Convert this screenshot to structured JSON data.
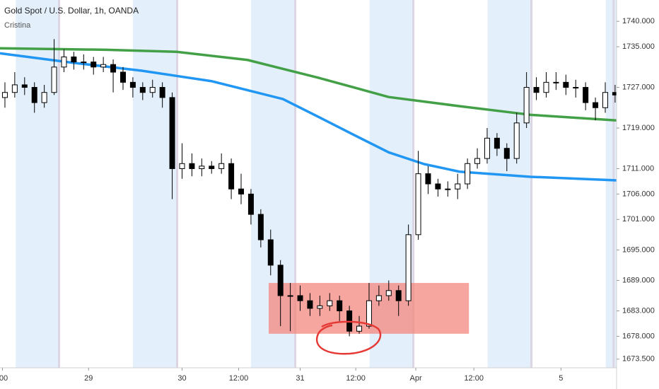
{
  "chart_data": {
    "type": "candlestick",
    "title": "Gold Spot / U.S. Dollar, 1h, OANDA",
    "subtitle": "Cristina",
    "xlim": [
      0,
      125.3
    ],
    "ylim": [
      1671.8,
      1744.2
    ],
    "yticks": [
      {
        "value": 1740,
        "label": "1740.000"
      },
      {
        "value": 1735,
        "label": "1735.000"
      },
      {
        "value": 1727,
        "label": "1727.000"
      },
      {
        "value": 1719,
        "label": "1719.000"
      },
      {
        "value": 1711,
        "label": "1711.000"
      },
      {
        "value": 1706,
        "label": "1706.000"
      },
      {
        "value": 1701,
        "label": "1701.000"
      },
      {
        "value": 1695,
        "label": "1695.000"
      },
      {
        "value": 1689,
        "label": "1689.000"
      },
      {
        "value": 1683,
        "label": "1683.000"
      },
      {
        "value": 1678,
        "label": "1678.000"
      },
      {
        "value": 1673.5,
        "label": "1673.500"
      }
    ],
    "xticks": [
      {
        "value": 0.5,
        "label": ":00"
      },
      {
        "value": 18,
        "label": "29"
      },
      {
        "value": 37,
        "label": "30"
      },
      {
        "value": 48.5,
        "label": "12:00"
      },
      {
        "value": 61,
        "label": "31"
      },
      {
        "value": 72.3,
        "label": "12:00"
      },
      {
        "value": 84.5,
        "label": "Apr"
      },
      {
        "value": 96.3,
        "label": "12:00"
      },
      {
        "value": 114,
        "label": "5"
      }
    ],
    "session_bands": [
      [
        3.2,
        11.8
      ],
      [
        27,
        36
      ],
      [
        51,
        60
      ],
      [
        75.1,
        84
      ],
      [
        99.1,
        108
      ],
      [
        123.1,
        125.3
      ]
    ],
    "day_lines": [
      12,
      36,
      60,
      84,
      108,
      124.7
    ],
    "up_color": "#ffffff",
    "down_color": "#000000",
    "candles": {
      "x": [
        1,
        3,
        5,
        7,
        9,
        11,
        13,
        15,
        17,
        19,
        21,
        23,
        25,
        27,
        29,
        31,
        33,
        35,
        37,
        39,
        41,
        43,
        45,
        47,
        49,
        51,
        53,
        55,
        57,
        59,
        61,
        63,
        65,
        67,
        69,
        71,
        73,
        75,
        77,
        79,
        81,
        83,
        85,
        87,
        89,
        91,
        93,
        95,
        97,
        99,
        101,
        103,
        105,
        107,
        109,
        111,
        113,
        115,
        117,
        119,
        121,
        123,
        125
      ],
      "open": [
        1725,
        1726,
        1727.5,
        1727,
        1724,
        1726,
        1731,
        1733,
        1732,
        1732,
        1731,
        1731.5,
        1730,
        1728,
        1727,
        1726,
        1727,
        1725,
        1711,
        1712,
        1711,
        1711.5,
        1711,
        1712,
        1707,
        1706,
        1702,
        1697,
        1692,
        1686,
        1686,
        1685,
        1683.5,
        1684,
        1685,
        1683,
        1679,
        1680,
        1685,
        1686,
        1687,
        1685,
        1698,
        1710,
        1708,
        1707,
        1707,
        1708,
        1712,
        1713,
        1717,
        1715,
        1713,
        1720,
        1727,
        1726,
        1728,
        1728,
        1727,
        1727,
        1724,
        1723,
        1726
      ],
      "high": [
        1728,
        1730,
        1729,
        1728,
        1727.5,
        1736.5,
        1734.5,
        1734,
        1733.5,
        1733,
        1733,
        1732.5,
        1731,
        1729,
        1728,
        1728.5,
        1728,
        1726,
        1716,
        1714,
        1713,
        1712.5,
        1714,
        1713,
        1710,
        1707,
        1703,
        1699,
        1693,
        1688.5,
        1688,
        1686.5,
        1686,
        1686.5,
        1686,
        1684,
        1682,
        1688.5,
        1688,
        1689,
        1688,
        1700,
        1714.5,
        1711.5,
        1709,
        1708.5,
        1710,
        1713,
        1715,
        1719,
        1718,
        1716,
        1722,
        1730,
        1729,
        1730,
        1730,
        1729.5,
        1728.5,
        1728,
        1725,
        1728,
        1727.5
      ],
      "low": [
        1723,
        1725,
        1725.5,
        1722,
        1723,
        1725.5,
        1730,
        1730.5,
        1730.5,
        1729.5,
        1730,
        1726,
        1726.5,
        1725,
        1724.5,
        1725,
        1723,
        1705,
        1709,
        1709.5,
        1709.5,
        1710,
        1710,
        1705,
        1704,
        1700,
        1695.5,
        1690,
        1680,
        1679,
        1683,
        1682,
        1682,
        1683,
        1681,
        1678,
        1678.5,
        1679.5,
        1684,
        1685,
        1682,
        1684,
        1697,
        1706,
        1705.5,
        1705.5,
        1705,
        1707,
        1711,
        1712,
        1713.5,
        1710.5,
        1712,
        1719,
        1724.5,
        1725,
        1726.5,
        1725.5,
        1725,
        1722.5,
        1720.5,
        1722,
        1724
      ],
      "close": [
        1726,
        1727.5,
        1727,
        1724,
        1726,
        1731,
        1733,
        1732,
        1732,
        1731,
        1731.5,
        1730,
        1728,
        1727,
        1726,
        1727,
        1725,
        1711,
        1712,
        1711,
        1711.5,
        1711,
        1712,
        1707,
        1706,
        1702,
        1697,
        1692,
        1686,
        1686,
        1685,
        1683.5,
        1684,
        1685,
        1683,
        1679,
        1680,
        1685,
        1686,
        1687,
        1685,
        1698,
        1710,
        1708,
        1707,
        1707,
        1708,
        1712,
        1713,
        1717,
        1715,
        1713,
        1720,
        1727,
        1726,
        1728,
        1728,
        1727,
        1727,
        1724,
        1723,
        1726,
        1725.5
      ]
    },
    "series": [
      {
        "color": "#43a047",
        "x": [
          0,
          21.6,
          35.9,
          50.3,
          64.7,
          79,
          93.4,
          107.8,
          125.3
        ],
        "values": [
          1734.7,
          1734.4,
          1734.0,
          1732.4,
          1728.9,
          1725.1,
          1723.3,
          1721.6,
          1720.5
        ]
      },
      {
        "color": "#2196f3",
        "x": [
          0,
          14.4,
          28.7,
          43.1,
          57.5,
          64.7,
          71.8,
          79,
          86.2,
          93.4,
          107.8,
          125.3
        ],
        "values": [
          1733.7,
          1731.9,
          1730.3,
          1728.2,
          1724.7,
          1721.2,
          1717.7,
          1714.2,
          1711.9,
          1710.4,
          1709.4,
          1708.7
        ]
      }
    ],
    "zone": {
      "color": "#f4877f",
      "x": [
        54.6,
        95.3
      ],
      "y": [
        1678.5,
        1688.5
      ]
    }
  }
}
